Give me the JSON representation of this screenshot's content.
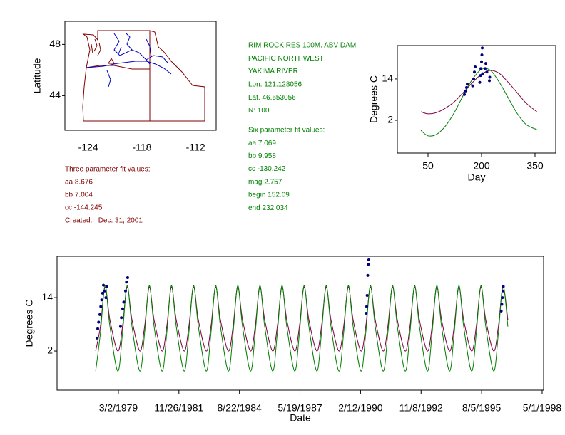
{
  "text_blocks": {
    "site_info": [
      "RIM ROCK RES 100M. ABV DAM",
      "PACIFIC NORTHWEST",
      "YAKIMA RIVER",
      "Lon. 121.128056",
      "Lat. 46.653056",
      "N: 100"
    ],
    "six_param": [
      "Six parameter fit values:",
      "aa 7.069",
      "bb 9.958",
      "cc -130.242",
      "mag 2.757",
      "begin 152.09",
      "end 232.034"
    ],
    "three_param": [
      "Three parameter fit values:",
      "aa 8.676",
      "bb 7.004",
      "cc -144.245",
      "Created:   Dec. 31, 2001"
    ]
  },
  "chart_data": [
    {
      "type": "map",
      "ylabel": "Latitude",
      "xlim": [
        -126.6,
        -109.7
      ],
      "ylim": [
        41.3,
        49.8
      ],
      "xticks": [
        -124,
        -118,
        -112
      ],
      "yticks": [
        44,
        48
      ]
    },
    {
      "type": "line",
      "xlabel": "Day",
      "ylabel": "Degrees C",
      "xlim": [
        -36,
        408
      ],
      "ylim": [
        -7.5,
        23.7
      ],
      "xticks": [
        50,
        200,
        350
      ],
      "yticks": [
        2,
        14
      ],
      "x": [
        30,
        50,
        75,
        100,
        125,
        150,
        175,
        200,
        225,
        250,
        275,
        300,
        325,
        355
      ],
      "series": [
        {
          "color": "#800040",
          "values": [
            4.5,
            3.9,
            4.3,
            5.6,
            7.5,
            10.2,
            13.0,
            15.4,
            16.5,
            15.6,
            13.0,
            10.0,
            7.0,
            4.5
          ]
        },
        {
          "color": "#008000",
          "values": [
            -0.9,
            -2.5,
            -2.0,
            0.5,
            4.5,
            9.5,
            14.0,
            16.8,
            16.5,
            13.0,
            8.5,
            4.0,
            0.8,
            -0.7
          ]
        },
        {
          "color": "#000080",
          "mode": "markers",
          "x": [
            152,
            155,
            158,
            160,
            175,
            178,
            180,
            182,
            195,
            197,
            198,
            200,
            201,
            202,
            203,
            210,
            212,
            215,
            222,
            223
          ],
          "values": [
            9.5,
            10.5,
            11.5,
            12.5,
            12.0,
            14.0,
            16.0,
            17.5,
            13.0,
            15.0,
            17.0,
            19.0,
            21.0,
            23.0,
            15.5,
            17.0,
            18.5,
            16.0,
            13.5,
            14.5
          ]
        }
      ]
    },
    {
      "type": "line",
      "xlabel": "Date",
      "ylabel": "Degrees C",
      "xlim": [
        27903,
        35940
      ],
      "ylim": [
        -6.8,
        23.3
      ],
      "xticks": [
        {
          "value": 28916,
          "label": "3/2/1979"
        },
        {
          "value": 29916,
          "label": "11/26/1981"
        },
        {
          "value": 30916,
          "label": "8/22/1984"
        },
        {
          "value": 31916,
          "label": "5/19/1987"
        },
        {
          "value": 32916,
          "label": "2/12/1990"
        },
        {
          "value": 33916,
          "label": "11/8/1992"
        },
        {
          "value": 34916,
          "label": "8/5/1995"
        },
        {
          "value": 35916,
          "label": "5/1/1998"
        }
      ],
      "yticks": [
        2,
        14
      ],
      "x": [
        28541,
        28619,
        28696,
        28776,
        28906,
        28984,
        29061,
        29141,
        29271,
        29349,
        29426,
        29506,
        29637,
        29715,
        29792,
        29872,
        30002,
        30080,
        30157,
        30237,
        30367,
        30445,
        30522,
        30602,
        30732,
        30810,
        30887,
        30967,
        31098,
        31176,
        31253,
        31333,
        31463,
        31541,
        31618,
        31698,
        31828,
        31906,
        31983,
        32063,
        32193,
        32271,
        32348,
        32428,
        32559,
        32637,
        32714,
        32794,
        32924,
        33002,
        33079,
        33159,
        33289,
        33367,
        33444,
        33524,
        33654,
        33732,
        33809,
        33889,
        34020,
        34098,
        34175,
        34255,
        34385,
        34463,
        34540,
        34620,
        34750,
        34828,
        34905,
        34985,
        35115,
        35193,
        35270,
        35350
      ],
      "series": [
        {
          "color": "#800040",
          "values": [
            2.0,
            7.5,
            16.4,
            9.0,
            2.0,
            7.5,
            16.4,
            9.0,
            2.0,
            7.5,
            16.4,
            9.0,
            2.0,
            7.5,
            16.4,
            9.0,
            2.0,
            7.5,
            16.4,
            9.0,
            2.0,
            7.5,
            16.4,
            9.0,
            2.0,
            7.5,
            16.4,
            9.0,
            2.0,
            7.5,
            16.4,
            9.0,
            2.0,
            7.5,
            16.4,
            9.0,
            2.0,
            7.5,
            16.4,
            9.0,
            2.0,
            7.5,
            16.4,
            9.0,
            2.0,
            7.5,
            16.4,
            9.0,
            2.0,
            7.5,
            16.4,
            9.0,
            2.0,
            7.5,
            16.4,
            9.0,
            2.0,
            7.5,
            16.4,
            9.0,
            2.0,
            7.5,
            16.4,
            9.0,
            2.0,
            7.5,
            16.4,
            9.0,
            2.0,
            7.5,
            16.4,
            9.0,
            2.0,
            7.5,
            16.4,
            9.0
          ]
        },
        {
          "color": "#008000",
          "values": [
            -2.5,
            6.0,
            16.7,
            7.5,
            -2.5,
            6.0,
            16.7,
            7.5,
            -2.5,
            6.0,
            16.7,
            7.5,
            -2.5,
            6.0,
            16.7,
            7.5,
            -2.5,
            6.0,
            16.7,
            7.5,
            -2.5,
            6.0,
            16.7,
            7.5,
            -2.5,
            6.0,
            16.7,
            7.5,
            -2.5,
            6.0,
            16.7,
            7.5,
            -2.5,
            6.0,
            16.7,
            7.5,
            -2.5,
            6.0,
            16.7,
            7.5,
            -2.5,
            6.0,
            16.7,
            7.5,
            -2.5,
            6.0,
            16.7,
            7.5,
            -2.5,
            6.0,
            16.7,
            7.5,
            -2.5,
            6.0,
            16.7,
            7.5,
            -2.5,
            6.0,
            16.7,
            7.5,
            -2.5,
            6.0,
            16.7,
            7.5,
            -2.5,
            6.0,
            16.7,
            7.5,
            -2.5,
            6.0,
            16.7,
            7.5,
            -2.5,
            6.0,
            16.7,
            7.5
          ]
        },
        {
          "color": "#000080",
          "mode": "markers",
          "x": [
            28562,
            28575,
            28590,
            28610,
            28625,
            28640,
            28655,
            28669,
            28690,
            28710,
            28727,
            28951,
            28965,
            28987,
            29005,
            29034,
            29050,
            29069,
            33010,
            33017,
            33025,
            33035,
            33045,
            33052,
            35240,
            35250,
            35260,
            35268,
            35275
          ],
          "values": [
            4.9,
            7.0,
            8.5,
            10.2,
            12.0,
            13.5,
            15.0,
            16.8,
            15.5,
            14.0,
            16.5,
            7.5,
            9.5,
            11.5,
            13.0,
            15.5,
            17.5,
            18.5,
            10.5,
            12.0,
            14.5,
            19.0,
            21.5,
            22.5,
            11.0,
            12.5,
            14.0,
            15.5,
            16.5
          ]
        }
      ]
    }
  ]
}
